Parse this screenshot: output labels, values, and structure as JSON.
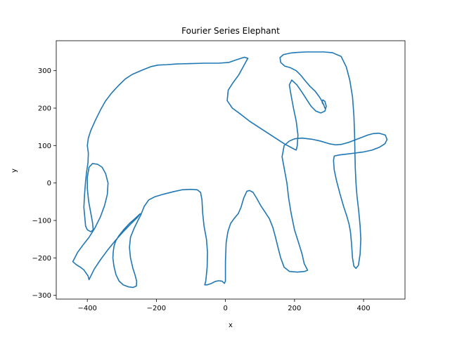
{
  "chart_data": {
    "type": "line",
    "title": "Fourier Series Elephant",
    "xlabel": "x",
    "ylabel": "y",
    "xlim": [
      -490,
      520
    ],
    "ylim": [
      -310,
      380
    ],
    "xticks": [
      -400,
      -200,
      0,
      200,
      400
    ],
    "yticks": [
      -300,
      -200,
      -100,
      0,
      100,
      200,
      300
    ],
    "grid": false,
    "series": [
      {
        "color": "#1f77b4",
        "points": [
          [
            -247,
            -82
          ],
          [
            -262,
            -95
          ],
          [
            -278,
            -108
          ],
          [
            -295,
            -125
          ],
          [
            -308,
            -140
          ],
          [
            -318,
            -155
          ],
          [
            -323,
            -170
          ],
          [
            -325,
            -185
          ],
          [
            -326,
            -200
          ],
          [
            -323,
            -222
          ],
          [
            -317,
            -245
          ],
          [
            -308,
            -262
          ],
          [
            -296,
            -272
          ],
          [
            -282,
            -277
          ],
          [
            -268,
            -279
          ],
          [
            -258,
            -275
          ],
          [
            -257,
            -263
          ],
          [
            -262,
            -245
          ],
          [
            -268,
            -228
          ],
          [
            -275,
            -200
          ],
          [
            -278,
            -172
          ],
          [
            -275,
            -145
          ],
          [
            -265,
            -122
          ],
          [
            -255,
            -103
          ],
          [
            -245,
            -85
          ],
          [
            -235,
            -62
          ],
          [
            -222,
            -45
          ],
          [
            -205,
            -37
          ],
          [
            -180,
            -30
          ],
          [
            -150,
            -23
          ],
          [
            -125,
            -18
          ],
          [
            -100,
            -17
          ],
          [
            -82,
            -18
          ],
          [
            -72,
            -25
          ],
          [
            -68,
            -45
          ],
          [
            -66,
            -80
          ],
          [
            -62,
            -115
          ],
          [
            -55,
            -150
          ],
          [
            -52,
            -185
          ],
          [
            -53,
            -225
          ],
          [
            -57,
            -262
          ],
          [
            -60,
            -272
          ],
          [
            -53,
            -272
          ],
          [
            -40,
            -268
          ],
          [
            -30,
            -263
          ],
          [
            -20,
            -261
          ],
          [
            -10,
            -262
          ],
          [
            -3,
            -268
          ],
          [
            0,
            -262
          ],
          [
            0,
            -210
          ],
          [
            2,
            -160
          ],
          [
            7,
            -130
          ],
          [
            15,
            -108
          ],
          [
            25,
            -95
          ],
          [
            37,
            -82
          ],
          [
            45,
            -65
          ],
          [
            53,
            -40
          ],
          [
            62,
            -22
          ],
          [
            70,
            -20
          ],
          [
            80,
            -25
          ],
          [
            90,
            -40
          ],
          [
            102,
            -60
          ],
          [
            115,
            -78
          ],
          [
            127,
            -95
          ],
          [
            137,
            -118
          ],
          [
            145,
            -145
          ],
          [
            153,
            -175
          ],
          [
            160,
            -200
          ],
          [
            170,
            -225
          ],
          [
            185,
            -236
          ],
          [
            208,
            -238
          ],
          [
            230,
            -236
          ],
          [
            238,
            -233
          ],
          [
            228,
            -215
          ],
          [
            222,
            -190
          ],
          [
            212,
            -160
          ],
          [
            200,
            -125
          ],
          [
            190,
            -80
          ],
          [
            183,
            -40
          ],
          [
            178,
            0
          ],
          [
            170,
            40
          ],
          [
            164,
            70
          ],
          [
            170,
            100
          ],
          [
            185,
            112
          ],
          [
            200,
            118
          ],
          [
            222,
            120
          ],
          [
            250,
            117
          ],
          [
            275,
            112
          ],
          [
            300,
            105
          ],
          [
            318,
            102
          ],
          [
            335,
            103
          ],
          [
            355,
            108
          ],
          [
            375,
            115
          ],
          [
            395,
            122
          ],
          [
            412,
            128
          ],
          [
            428,
            132
          ],
          [
            445,
            133
          ],
          [
            463,
            128
          ],
          [
            468,
            116
          ],
          [
            462,
            105
          ],
          [
            447,
            96
          ],
          [
            425,
            88
          ],
          [
            400,
            83
          ],
          [
            375,
            80
          ],
          [
            350,
            77
          ],
          [
            330,
            75
          ],
          [
            315,
            72
          ],
          [
            313,
            60
          ],
          [
            315,
            35
          ],
          [
            322,
            5
          ],
          [
            332,
            -30
          ],
          [
            342,
            -62
          ],
          [
            352,
            -90
          ],
          [
            358,
            -110
          ],
          [
            362,
            -130
          ],
          [
            365,
            -160
          ],
          [
            368,
            -200
          ],
          [
            372,
            -222
          ],
          [
            378,
            -228
          ],
          [
            385,
            -220
          ],
          [
            390,
            -190
          ],
          [
            392,
            -150
          ],
          [
            390,
            -115
          ],
          [
            386,
            -75
          ],
          [
            381,
            -35
          ],
          [
            378,
            0
          ],
          [
            376,
            40
          ],
          [
            375,
            80
          ],
          [
            374,
            130
          ],
          [
            372,
            180
          ],
          [
            368,
            230
          ],
          [
            360,
            275
          ],
          [
            350,
            310
          ],
          [
            335,
            338
          ],
          [
            310,
            348
          ],
          [
            285,
            350
          ],
          [
            260,
            350
          ],
          [
            235,
            350
          ],
          [
            210,
            349
          ],
          [
            188,
            347
          ],
          [
            168,
            343
          ],
          [
            158,
            335
          ],
          [
            160,
            322
          ],
          [
            172,
            312
          ],
          [
            188,
            308
          ],
          [
            205,
            300
          ],
          [
            218,
            288
          ],
          [
            232,
            272
          ],
          [
            245,
            258
          ],
          [
            260,
            245
          ],
          [
            272,
            230
          ],
          [
            280,
            218
          ],
          [
            285,
            208
          ],
          [
            288,
            200
          ],
          [
            285,
            208
          ],
          [
            280,
            215
          ],
          [
            282,
            222
          ],
          [
            288,
            218
          ],
          [
            292,
            205
          ],
          [
            288,
            192
          ],
          [
            276,
            187
          ],
          [
            262,
            192
          ],
          [
            248,
            205
          ],
          [
            236,
            222
          ],
          [
            222,
            242
          ],
          [
            207,
            262
          ],
          [
            192,
            275
          ],
          [
            185,
            262
          ],
          [
            190,
            235
          ],
          [
            197,
            200
          ],
          [
            205,
            165
          ],
          [
            210,
            128
          ],
          [
            208,
            100
          ],
          [
            205,
            88
          ],
          [
            200,
            90
          ],
          [
            190,
            95
          ],
          [
            170,
            105
          ],
          [
            145,
            120
          ],
          [
            120,
            135
          ],
          [
            95,
            150
          ],
          [
            70,
            165
          ],
          [
            45,
            183
          ],
          [
            20,
            200
          ],
          [
            5,
            220
          ],
          [
            8,
            248
          ],
          [
            22,
            268
          ],
          [
            38,
            288
          ],
          [
            50,
            308
          ],
          [
            60,
            325
          ],
          [
            65,
            333
          ],
          [
            55,
            336
          ],
          [
            35,
            330
          ],
          [
            10,
            322
          ],
          [
            -20,
            320
          ],
          [
            -60,
            320
          ],
          [
            -100,
            319
          ],
          [
            -140,
            318
          ],
          [
            -170,
            316
          ],
          [
            -195,
            315
          ],
          [
            -215,
            311
          ],
          [
            -240,
            302
          ],
          [
            -270,
            290
          ],
          [
            -290,
            278
          ],
          [
            -310,
            260
          ],
          [
            -330,
            240
          ],
          [
            -348,
            218
          ],
          [
            -362,
            195
          ],
          [
            -378,
            165
          ],
          [
            -390,
            140
          ],
          [
            -397,
            120
          ],
          [
            -400,
            100
          ],
          [
            -397,
            80
          ],
          [
            -398,
            55
          ],
          [
            -402,
            30
          ],
          [
            -405,
            5
          ],
          [
            -408,
            -30
          ],
          [
            -410,
            -65
          ],
          [
            -407,
            -95
          ],
          [
            -405,
            -115
          ],
          [
            -400,
            -125
          ],
          [
            -390,
            -130
          ],
          [
            -383,
            -125
          ],
          [
            -385,
            -105
          ],
          [
            -390,
            -80
          ],
          [
            -396,
            -50
          ],
          [
            -400,
            -15
          ],
          [
            -400,
            15
          ],
          [
            -395,
            42
          ],
          [
            -385,
            52
          ],
          [
            -370,
            50
          ],
          [
            -357,
            42
          ],
          [
            -347,
            25
          ],
          [
            -340,
            0
          ],
          [
            -342,
            -30
          ],
          [
            -350,
            -60
          ],
          [
            -362,
            -90
          ],
          [
            -378,
            -120
          ],
          [
            -395,
            -145
          ],
          [
            -412,
            -165
          ],
          [
            -428,
            -185
          ],
          [
            -442,
            -210
          ],
          [
            -432,
            -218
          ],
          [
            -420,
            -225
          ],
          [
            -410,
            -232
          ],
          [
            -398,
            -248
          ],
          [
            -395,
            -258
          ],
          [
            -380,
            -230
          ],
          [
            -362,
            -205
          ],
          [
            -342,
            -180
          ],
          [
            -320,
            -155
          ],
          [
            -298,
            -132
          ],
          [
            -275,
            -110
          ],
          [
            -255,
            -92
          ],
          [
            -247,
            -82
          ]
        ]
      }
    ]
  }
}
